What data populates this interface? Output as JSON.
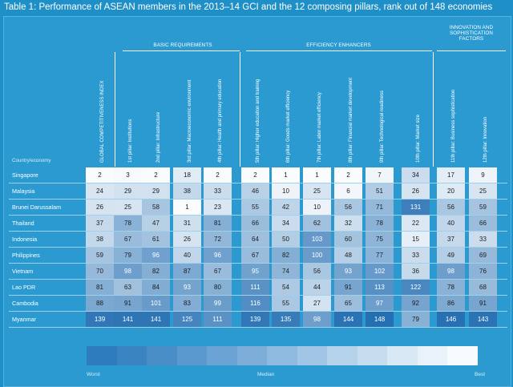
{
  "title": "Table 1: Performance of ASEAN members in the 2013–14 GCI and the 12 composing pillars, rank out of 148 economies",
  "groups": {
    "basic": "BASIC REQUIREMENTS",
    "efficiency": "EFFICIENCY ENHANCERS",
    "innovation_line1": "INNOVATION AND",
    "innovation_line2": "SOPHISTICATION",
    "innovation_line3": "FACTORS"
  },
  "country_header": "Country/economy",
  "columns": [
    "GLOBAL COMPETITIVENESS INDEX",
    "1st pillar: Institutions",
    "2nd pillar: Infrastructure",
    "3rd pillar: Macroeconomic environment",
    "4th pillar: Health and primary education",
    "5th pillar: Higher education and training",
    "6th pillar: Goods market efficiency",
    "7th pillar: Labor market efficiency",
    "8th pillar: Financial market development",
    "9th pillar: Technological readiness",
    "10th pillar: Market size",
    "11th pillar: Business sophistication",
    "12th pillar: Innovation"
  ],
  "rows": [
    {
      "country": "Singapore",
      "values": [
        "2",
        "3",
        "2",
        "18",
        "2",
        "2",
        "1",
        "1",
        "2",
        "7",
        "34",
        "17",
        "9"
      ]
    },
    {
      "country": "Malaysia",
      "values": [
        "24",
        "29",
        "29",
        "38",
        "33",
        "46",
        "10",
        "25",
        "6",
        "51",
        "26",
        "20",
        "25"
      ]
    },
    {
      "country": "Brunei Darussalam",
      "values": [
        "26",
        "25",
        "58",
        "1",
        "23",
        "55",
        "42",
        "10",
        "56",
        "71",
        "131",
        "56",
        "59"
      ]
    },
    {
      "country": "Thailand",
      "values": [
        "37",
        "78",
        "47",
        "31",
        "81",
        "66",
        "34",
        "62",
        "32",
        "78",
        "22",
        "40",
        "66"
      ]
    },
    {
      "country": "Indonesia",
      "values": [
        "38",
        "67",
        "61",
        "26",
        "72",
        "64",
        "50",
        "103",
        "60",
        "75",
        "15",
        "37",
        "33"
      ]
    },
    {
      "country": "Philippines",
      "values": [
        "59",
        "79",
        "96",
        "40",
        "96",
        "67",
        "82",
        "100",
        "48",
        "77",
        "33",
        "49",
        "69"
      ]
    },
    {
      "country": "Vietnam",
      "values": [
        "70",
        "98",
        "82",
        "87",
        "67",
        "95",
        "74",
        "56",
        "93",
        "102",
        "36",
        "98",
        "76"
      ]
    },
    {
      "country": "Lao PDR",
      "values": [
        "81",
        "63",
        "84",
        "93",
        "80",
        "111",
        "54",
        "44",
        "91",
        "113",
        "122",
        "78",
        "68"
      ]
    },
    {
      "country": "Cambodia",
      "values": [
        "88",
        "91",
        "101",
        "83",
        "99",
        "116",
        "55",
        "27",
        "65",
        "97",
        "92",
        "86",
        "91"
      ]
    },
    {
      "country": "Myanmar",
      "values": [
        "139",
        "141",
        "141",
        "125",
        "111",
        "139",
        "135",
        "98",
        "144",
        "148",
        "79",
        "146",
        "143"
      ]
    }
  ],
  "legend": {
    "worst": "Worst",
    "median": "Median",
    "best": "Best",
    "colors": [
      "#2e7bbd",
      "#3b84c2",
      "#4a8ec8",
      "#5a99ce",
      "#6ba4d4",
      "#7caed9",
      "#8fbadf",
      "#a1c6e5",
      "#b4d2ea",
      "#c6ddf0",
      "#d8e8f5",
      "#e9f2fa",
      "#f8fbfe"
    ]
  }
}
